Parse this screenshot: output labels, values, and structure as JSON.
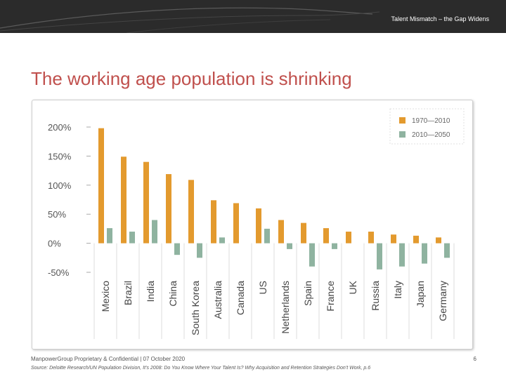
{
  "header": {
    "title": "Talent Mismatch – the Gap Widens"
  },
  "slide": {
    "title": "The working age population is shrinking"
  },
  "chart_data": {
    "type": "bar",
    "title": "",
    "xlabel": "",
    "ylabel": "",
    "ylim": [
      -50,
      200
    ],
    "yticks": [
      200,
      150,
      100,
      50,
      0,
      -50
    ],
    "ytick_labels": [
      "200%",
      "150%",
      "100%",
      "50%",
      "0%",
      "-50%"
    ],
    "categories": [
      "Mexico",
      "Brazil",
      "India",
      "China",
      "South Korea",
      "Australia",
      "Canada",
      "US",
      "Netherlands",
      "Spain",
      "France",
      "UK",
      "Russia",
      "Italy",
      "Japan",
      "Germany"
    ],
    "series": [
      {
        "name": "1970—2010",
        "color": "#e39a2e",
        "values": [
          198,
          149,
          140,
          119,
          109,
          74,
          69,
          60,
          40,
          35,
          26,
          20,
          20,
          15,
          13,
          10
        ]
      },
      {
        "name": "2010—2050",
        "color": "#8fb3a0",
        "values": [
          26,
          20,
          40,
          -20,
          -25,
          10,
          0,
          25,
          -10,
          -40,
          -10,
          0,
          -45,
          -40,
          -35,
          -25
        ]
      }
    ],
    "legend_position": "top-right"
  },
  "footer": {
    "proprietary": "ManpowerGroup  Proprietary & Confidential  |  07 October 2020",
    "source": "Source: Deloitte Research/UN Population Division, It’s 2008:  Do You Know Where Your Talent Is?  Why Acquisition and Retention Strategies Don’t Work, p.6",
    "page": "6"
  }
}
